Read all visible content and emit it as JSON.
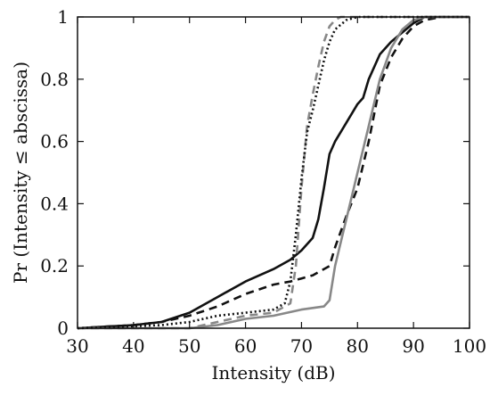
{
  "chart_data": {
    "type": "line",
    "title": "",
    "xlabel": "Intensity  (dB)",
    "ylabel": "Pr (Intensity ≤ abscissa)",
    "xlim": [
      30,
      100
    ],
    "ylim": [
      0,
      1
    ],
    "xticks": [
      30,
      40,
      50,
      60,
      70,
      80,
      90,
      100
    ],
    "yticks": [
      0,
      0.2,
      0.4,
      0.6,
      0.8,
      1
    ],
    "ytick_labels": [
      "0",
      "0.2",
      "0.4",
      "0.6",
      "0.8",
      "1"
    ],
    "grid": false,
    "legend": "none",
    "series": [
      {
        "color": "#111111",
        "dash": "solid",
        "x": [
          30,
          40,
          45,
          50,
          55,
          60,
          65,
          68,
          70,
          72,
          73,
          74,
          75,
          76,
          78,
          80,
          81,
          82,
          84,
          86,
          88,
          90,
          92,
          95,
          100
        ],
        "y": [
          0,
          0.01,
          0.02,
          0.05,
          0.1,
          0.15,
          0.19,
          0.22,
          0.25,
          0.29,
          0.35,
          0.45,
          0.56,
          0.6,
          0.66,
          0.72,
          0.74,
          0.8,
          0.88,
          0.92,
          0.95,
          0.98,
          1,
          1,
          1
        ]
      },
      {
        "color": "#111111",
        "dash": "dashed",
        "x": [
          30,
          40,
          45,
          50,
          55,
          60,
          65,
          68,
          70,
          72,
          74,
          75,
          76,
          78,
          80,
          82,
          84,
          86,
          88,
          90,
          92,
          95,
          100
        ],
        "y": [
          0,
          0.01,
          0.02,
          0.04,
          0.07,
          0.11,
          0.14,
          0.15,
          0.16,
          0.17,
          0.19,
          0.2,
          0.26,
          0.36,
          0.45,
          0.6,
          0.78,
          0.87,
          0.93,
          0.97,
          0.99,
          1,
          1
        ]
      },
      {
        "color": "#888888",
        "dash": "solid",
        "x": [
          30,
          50,
          55,
          60,
          65,
          70,
          74,
          75,
          76,
          78,
          80,
          82,
          84,
          86,
          88,
          90,
          92,
          95,
          100
        ],
        "y": [
          0,
          0,
          0.01,
          0.03,
          0.04,
          0.06,
          0.07,
          0.09,
          0.2,
          0.35,
          0.5,
          0.65,
          0.8,
          0.9,
          0.96,
          0.99,
          1,
          1,
          1
        ]
      },
      {
        "color": "#888888",
        "dash": "dashed",
        "x": [
          30,
          50,
          55,
          60,
          65,
          68,
          69,
          70,
          71,
          72,
          73,
          74,
          75,
          76,
          77,
          78,
          80,
          85,
          100
        ],
        "y": [
          0,
          0,
          0.02,
          0.04,
          0.05,
          0.08,
          0.2,
          0.45,
          0.65,
          0.75,
          0.84,
          0.92,
          0.97,
          0.99,
          1,
          1,
          1,
          1,
          1
        ]
      },
      {
        "color": "#111111",
        "dash": "dotted",
        "x": [
          30,
          45,
          50,
          55,
          60,
          65,
          67,
          68,
          69,
          70,
          71,
          72,
          73,
          74,
          75,
          76,
          78,
          80,
          82,
          85,
          100
        ],
        "y": [
          0,
          0.01,
          0.02,
          0.04,
          0.05,
          0.06,
          0.08,
          0.15,
          0.3,
          0.48,
          0.63,
          0.7,
          0.78,
          0.86,
          0.92,
          0.96,
          0.99,
          1,
          1,
          1,
          1
        ]
      }
    ]
  }
}
